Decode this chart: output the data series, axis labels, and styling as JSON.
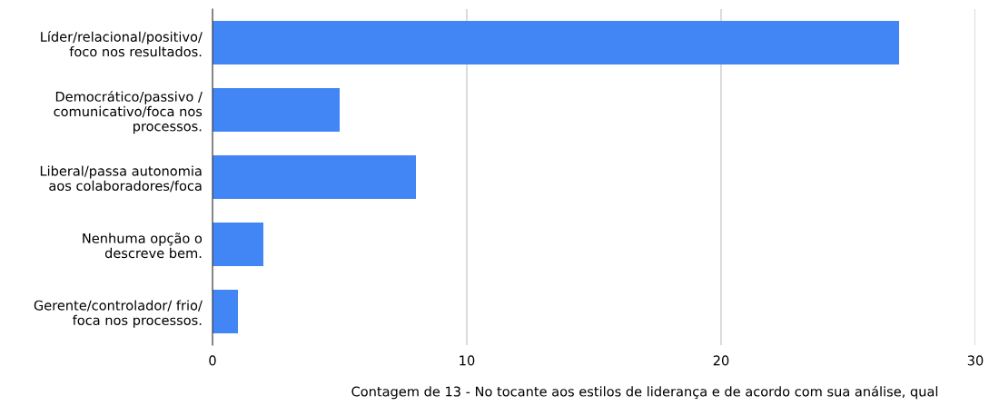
{
  "chart_data": {
    "type": "bar",
    "orientation": "horizontal",
    "categories": [
      "Líder/relacional/positivo/\nfoco nos resultados.",
      "Democrático/passivo /\ncomunicativo/foca nos\nprocessos.",
      "Liberal/passa autonomia\naos colaboradores/foca",
      "Nenhuma opção o\ndescreve bem.",
      "Gerente/controlador/ frio/\nfoca nos processos."
    ],
    "values": [
      27,
      5,
      8,
      2,
      1
    ],
    "color": "#4285f4",
    "xlim": [
      0,
      30
    ],
    "xticks": [
      0,
      10,
      20,
      30
    ],
    "grid": "x",
    "annotations": [
      "Contagem de 13 - No tocante aos estilos de liderança e de acordo com sua análise, qual"
    ]
  }
}
